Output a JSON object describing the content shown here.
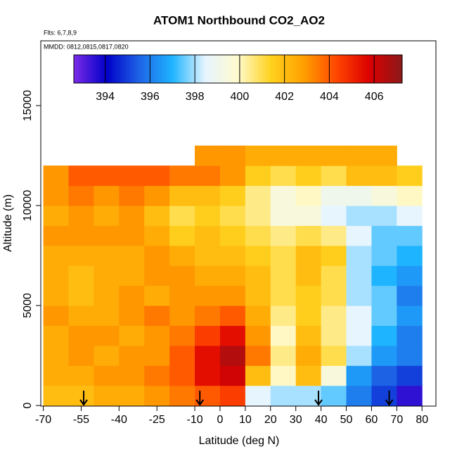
{
  "chart_data": {
    "type": "heatmap",
    "title": "ATOM1 Northbound CO2_AO2",
    "subtitle": "Flts: 6,7,8,9",
    "annotation": "MMDD: 0812,0815,0817,0820",
    "xlabel": "Latitude (deg N)",
    "ylabel": "Altitude (m)",
    "xlim": [
      -71,
      85.5
    ],
    "ylim": [
      -30,
      18240
    ],
    "xticks": [
      -70,
      -55,
      -40,
      -25,
      -10,
      0,
      10,
      20,
      30,
      40,
      50,
      60,
      70,
      80
    ],
    "yticks": [
      0,
      5000,
      10000,
      15000
    ],
    "x_bins": [
      -70,
      -60,
      -50,
      -40,
      -30,
      -20,
      -10,
      0,
      10,
      20,
      30,
      40,
      50,
      60,
      70,
      80
    ],
    "y_bins": [
      0,
      1000,
      2000,
      3000,
      4000,
      5000,
      6000,
      7000,
      8000,
      9000,
      10000,
      11000,
      12000,
      13000
    ],
    "z": [
      [
        402,
        402,
        402.5,
        402.5,
        403,
        403.5,
        404,
        404.5,
        398.5,
        398,
        398,
        397.5,
        396,
        395,
        393.5
      ],
      [
        402.5,
        402.5,
        403,
        403,
        403.5,
        404,
        405.5,
        406,
        402,
        400,
        402,
        399.5,
        396.5,
        395.5,
        395
      ],
      [
        402.5,
        403,
        402.5,
        403,
        403,
        404,
        405.5,
        406.5,
        403.5,
        400.5,
        402.5,
        401,
        398,
        396.5,
        396
      ],
      [
        402.5,
        403,
        403,
        402.5,
        403,
        403.5,
        404.5,
        405.5,
        403,
        400,
        402,
        400.5,
        398.5,
        397,
        396
      ],
      [
        403,
        402.5,
        402.5,
        403,
        403.5,
        403,
        403.5,
        404,
        402.5,
        400.5,
        401.5,
        400.5,
        398.5,
        397.5,
        396.5
      ],
      [
        402.5,
        402,
        402.5,
        403,
        402.5,
        403,
        403,
        403,
        402,
        401,
        401.5,
        401,
        398,
        397.5,
        396
      ],
      [
        402.5,
        402,
        402.5,
        402.5,
        403,
        403,
        402.5,
        402.5,
        402,
        401,
        402,
        401,
        398,
        397,
        396.5
      ],
      [
        402.5,
        402.5,
        402.5,
        402.5,
        403,
        402.5,
        402,
        402,
        401.5,
        401,
        402,
        401.5,
        398,
        397.5,
        397
      ],
      [
        403,
        403,
        403,
        403,
        402.5,
        401.5,
        402,
        401.5,
        401,
        400.5,
        401,
        400.5,
        398.5,
        397.5,
        397.5
      ],
      [
        402.5,
        403,
        402.5,
        403,
        402,
        401,
        401.5,
        401,
        400.5,
        399.5,
        399.5,
        398.5,
        398,
        398,
        398.5
      ],
      [
        403,
        403.5,
        403,
        403.5,
        403,
        402,
        402,
        401.5,
        400.5,
        399.5,
        400,
        399,
        399,
        399.5,
        400
      ],
      [
        403,
        404,
        404,
        404,
        404,
        403.5,
        403.5,
        403,
        401.5,
        401,
        401.5,
        401,
        402,
        402,
        401.5
      ],
      [
        null,
        null,
        null,
        null,
        null,
        null,
        403,
        403,
        402.5,
        402.5,
        402.5,
        402.5,
        402.5,
        402.5,
        null
      ]
    ],
    "colorscale": [
      "#7b2be8",
      "#0000c8",
      "#1e64e6",
      "#1eb4ff",
      "#e6f5ff",
      "#fffacd",
      "#ffd21e",
      "#ffa000",
      "#ff4600",
      "#dc0000",
      "#8b1a1a"
    ],
    "zlim": [
      392.6,
      407.25
    ],
    "colorbar_ticks": [
      394,
      396,
      398,
      400,
      402,
      404,
      406
    ],
    "arrows": [
      -54,
      -8,
      39,
      67
    ]
  }
}
